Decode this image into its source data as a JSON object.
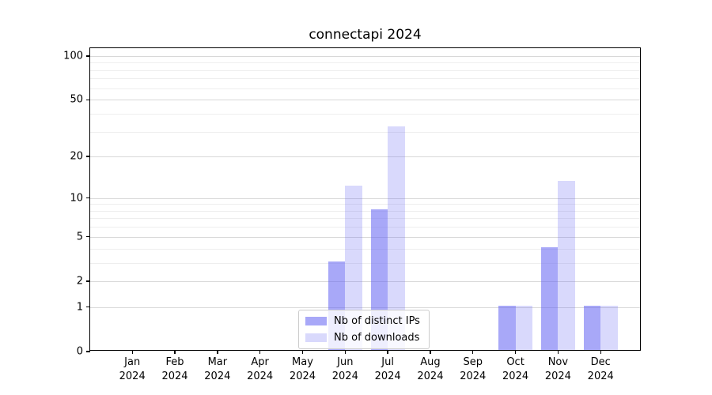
{
  "chart_data": {
    "type": "bar",
    "title": "connectapi 2024",
    "categories": [
      "Jan",
      "Feb",
      "Mar",
      "Apr",
      "May",
      "Jun",
      "Jul",
      "Aug",
      "Sep",
      "Oct",
      "Nov",
      "Dec"
    ],
    "year_label": "2024",
    "series": [
      {
        "name": "Nb of distinct IPs",
        "color": "rgba(102,102,242,0.57)",
        "values": [
          0,
          0,
          0,
          0,
          0,
          3,
          8,
          0,
          0,
          1,
          4,
          1
        ]
      },
      {
        "name": "Nb of downloads",
        "color": "rgba(102,102,242,0.25)",
        "values": [
          0,
          0,
          0,
          0,
          0,
          12,
          32,
          0,
          0,
          1,
          13,
          1
        ]
      }
    ],
    "xlabel": "",
    "ylabel": "",
    "yscale": "log1p",
    "yticks_major": [
      0,
      1,
      2,
      5,
      10,
      20,
      50,
      100
    ],
    "yticks_minor": [
      3,
      4,
      6,
      7,
      8,
      9,
      30,
      40,
      60,
      70,
      80,
      90
    ],
    "ylim": [
      0,
      113
    ],
    "grid": true,
    "legend_position": "lower center",
    "colors": {
      "grid_major": "#d8d8d8",
      "grid_minor": "#eeeeee",
      "axis": "#000000",
      "legend_border": "#cccccc",
      "legend_bg": "rgba(255,255,255,0.8)",
      "bar_distinct_ips": "rgba(102,102,242,0.57)",
      "bar_downloads": "rgba(102,102,242,0.25)"
    }
  }
}
